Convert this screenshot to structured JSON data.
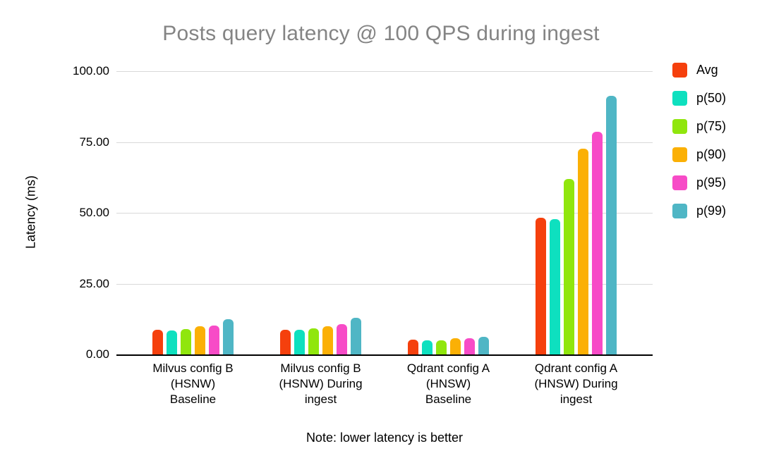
{
  "chart_data": {
    "type": "bar",
    "title": "Posts query latency @ 100 QPS during ingest",
    "ylabel": "Latency (ms)",
    "xlabel": "",
    "note": "Note: lower latency is better",
    "ylim": [
      0,
      100
    ],
    "ytick_labels": [
      "100.00",
      "75.00",
      "50.00",
      "25.00",
      "0.00"
    ],
    "grid": true,
    "legend_position": "right",
    "categories": [
      "Milvus config B\n(HSNW)\nBaseline",
      "Milvus config B\n(HSNW) During\ningest",
      "Qdrant config A\n(HNSW)\nBaseline",
      "Qdrant config A\n(HNSW) During\ningest"
    ],
    "series": [
      {
        "name": "Avg",
        "color": "#F5400D",
        "values": [
          8.7,
          8.7,
          5.2,
          48.2
        ]
      },
      {
        "name": "p(50)",
        "color": "#0EE0BF",
        "values": [
          8.4,
          8.7,
          5.1,
          47.7
        ]
      },
      {
        "name": "p(75)",
        "color": "#90E60D",
        "values": [
          9.0,
          9.3,
          5.1,
          62.0
        ]
      },
      {
        "name": "p(90)",
        "color": "#FBB005",
        "values": [
          9.9,
          9.9,
          5.8,
          72.7
        ]
      },
      {
        "name": "p(95)",
        "color": "#F74BC7",
        "values": [
          10.3,
          10.8,
          5.7,
          78.5
        ]
      },
      {
        "name": "p(99)",
        "color": "#4FB6C5",
        "values": [
          12.5,
          13.0,
          6.3,
          91.4
        ]
      }
    ]
  },
  "colors": {
    "background": "#FFFFFF",
    "title_text": "#848484",
    "axis_text": "#000000",
    "gridline": "#D9D9D9",
    "axis_line": "#000000"
  }
}
